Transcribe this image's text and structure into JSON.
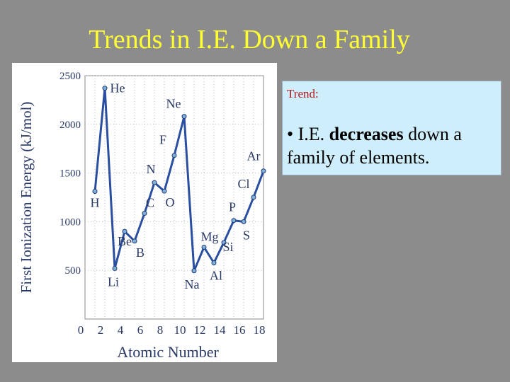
{
  "slide": {
    "title": "Trends in I.E. Down a Family"
  },
  "note": {
    "heading": "Trend:",
    "bullet": "•",
    "text_before": "I.E.",
    "text_bold": "decreases",
    "text_after": "down a family of elements."
  },
  "chart_data": {
    "type": "line",
    "xlabel": "Atomic Number",
    "ylabel": "First Ionization Energy (kJ/mol)",
    "xlim": [
      0,
      18
    ],
    "ylim": [
      0,
      2500
    ],
    "x_ticks": [
      0,
      2,
      4,
      6,
      8,
      10,
      12,
      14,
      16,
      18
    ],
    "y_ticks": [
      500,
      1000,
      1500,
      2000,
      2500
    ],
    "grid": true,
    "series": [
      {
        "color": "#2a4ea0",
        "points": [
          {
            "x": 1,
            "y": 1312,
            "label": "H"
          },
          {
            "x": 2,
            "y": 2372,
            "label": "He"
          },
          {
            "x": 3,
            "y": 520,
            "label": "Li"
          },
          {
            "x": 4,
            "y": 900,
            "label": "Be"
          },
          {
            "x": 5,
            "y": 801,
            "label": "B"
          },
          {
            "x": 6,
            "y": 1086,
            "label": "C"
          },
          {
            "x": 7,
            "y": 1402,
            "label": "N"
          },
          {
            "x": 8,
            "y": 1314,
            "label": "O"
          },
          {
            "x": 9,
            "y": 1681,
            "label": "F"
          },
          {
            "x": 10,
            "y": 2081,
            "label": "Ne"
          },
          {
            "x": 11,
            "y": 496,
            "label": "Na"
          },
          {
            "x": 12,
            "y": 738,
            "label": "Mg"
          },
          {
            "x": 13,
            "y": 578,
            "label": "Al"
          },
          {
            "x": 14,
            "y": 786,
            "label": "Si"
          },
          {
            "x": 15,
            "y": 1012,
            "label": "P"
          },
          {
            "x": 16,
            "y": 1000,
            "label": "S"
          },
          {
            "x": 17,
            "y": 1251,
            "label": "Cl"
          },
          {
            "x": 18,
            "y": 1521,
            "label": "Ar"
          }
        ]
      }
    ]
  }
}
